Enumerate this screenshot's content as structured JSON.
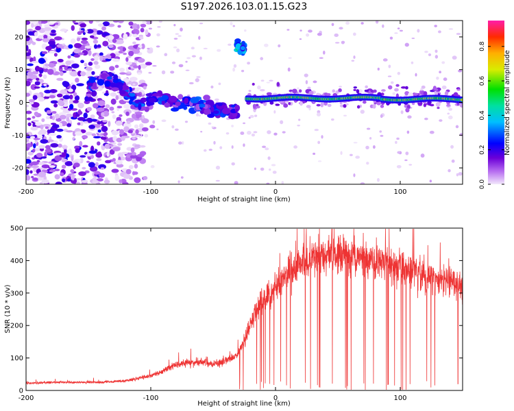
{
  "figure_title": "S197.2026.103.01.15.G23",
  "chart_data": [
    {
      "type": "heatmap",
      "title": "S197.2026.103.01.15.G23",
      "xlabel": "Height of straight line (km)",
      "ylabel": "Frequency (Hz)",
      "xlim": [
        -200,
        150
      ],
      "ylim": [
        -25,
        25
      ],
      "x_ticks": [
        -200,
        -100,
        0,
        100
      ],
      "y_ticks": [
        -20,
        -10,
        0,
        10,
        20
      ],
      "colorbar": {
        "label": "Normalized spectral amplitude",
        "range": [
          0.0,
          0.95
        ],
        "ticks": [
          "0.0",
          "0.2",
          "0.4",
          "0.6",
          "0.8"
        ]
      },
      "features": [
        {
          "name": "noise field",
          "x_range": [
            -200,
            -105
          ],
          "freq_range": [
            -25,
            25
          ],
          "amplitude": 0.2
        },
        {
          "name": "descending signal",
          "x_range": [
            -150,
            -30
          ],
          "freq_start": 5,
          "freq_end": -3,
          "amplitude": 0.3
        },
        {
          "name": "short burst",
          "x_range": [
            -32,
            -24
          ],
          "freq": 17,
          "amplitude": 0.5
        },
        {
          "name": "steady tone",
          "x_range": [
            -23,
            150
          ],
          "freq": 1.3,
          "amplitude": 0.85
        }
      ]
    },
    {
      "type": "line",
      "xlabel": "Height of straight line (km)",
      "ylabel": "SNR (10 * v/v)",
      "xlim": [
        -200,
        150
      ],
      "ylim": [
        0,
        500
      ],
      "x_ticks": [
        -200,
        -100,
        0,
        100
      ],
      "y_ticks": [
        0,
        100,
        200,
        300,
        400,
        500
      ],
      "series": [
        {
          "name": "SNR",
          "color": "#ee3333",
          "x": [
            -200,
            -180,
            -160,
            -140,
            -120,
            -100,
            -90,
            -80,
            -70,
            -60,
            -50,
            -40,
            -30,
            -25,
            -20,
            -15,
            -10,
            -5,
            0,
            10,
            20,
            30,
            40,
            50,
            60,
            70,
            80,
            90,
            100,
            110,
            120,
            130,
            140,
            150
          ],
          "values": [
            22,
            25,
            25,
            25,
            30,
            45,
            60,
            80,
            85,
            90,
            80,
            90,
            110,
            150,
            210,
            250,
            280,
            290,
            320,
            360,
            390,
            410,
            420,
            420,
            415,
            410,
            400,
            390,
            380,
            370,
            350,
            340,
            330,
            320
          ]
        }
      ]
    }
  ]
}
